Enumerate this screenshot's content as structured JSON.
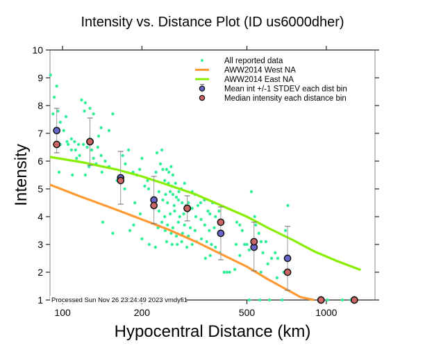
{
  "chart_data": {
    "type": "scatter",
    "title": "Intensity vs. Distance Plot (ID us6000dher)",
    "xlabel": "Hypocentral Distance (km)",
    "ylabel": "Intensity",
    "xscale": "log",
    "xlim": [
      89.6,
      1530
    ],
    "ylim": [
      1,
      10
    ],
    "xticks": [
      100,
      200,
      500,
      1000
    ],
    "xtick_labels": [
      "100",
      "200",
      "500",
      "1000"
    ],
    "yticks": [
      1,
      2,
      3,
      4,
      5,
      6,
      7,
      8,
      9,
      10
    ],
    "ytick_labels": [
      "1",
      "2",
      "3",
      "4",
      "5",
      "6",
      "7",
      "8",
      "9",
      "10"
    ],
    "legend_position": "top-right",
    "legend": [
      {
        "label": "All reported data",
        "kind": "dot",
        "color": "#33ee99"
      },
      {
        "label": "AWW2014 West NA",
        "kind": "line",
        "color": "#ff9933"
      },
      {
        "label": "AWW2014 East NA",
        "kind": "line",
        "color": "#88ee00"
      },
      {
        "label": "Mean int +/-1 STDEV each dist bin",
        "kind": "mean",
        "color": "#6666cc"
      },
      {
        "label": "Median intensity each distance bin",
        "kind": "median",
        "color": "#cc6666"
      }
    ],
    "annotation": "Processed Sun Nov 26 23:24:49 2023 vmdyfi1",
    "series": [
      {
        "name": "All reported data",
        "color": "#33ee99",
        "points": [
          [
            90,
            9.1
          ],
          [
            95,
            8.7
          ],
          [
            93,
            8.3
          ],
          [
            92,
            7.7
          ],
          [
            96,
            7.8
          ],
          [
            98,
            7.4
          ],
          [
            101,
            7.1
          ],
          [
            103,
            7.6
          ],
          [
            104,
            6.7
          ],
          [
            98,
            6.6
          ],
          [
            105,
            6.6
          ],
          [
            108,
            6.4
          ],
          [
            112,
            6.4
          ],
          [
            111,
            6.7
          ],
          [
            108,
            6.8
          ],
          [
            115,
            6.6
          ],
          [
            116,
            6.2
          ],
          [
            113,
            6.1
          ],
          [
            97,
            5.6
          ],
          [
            109,
            5.5
          ],
          [
            118,
            8.2
          ],
          [
            122,
            8.1
          ],
          [
            121,
            7.8
          ],
          [
            127,
            7.9
          ],
          [
            131,
            7.7
          ],
          [
            140,
            7.2
          ],
          [
            150,
            7.1
          ],
          [
            137,
            6.9
          ],
          [
            127,
            6.8
          ],
          [
            120,
            6.6
          ],
          [
            124,
            6.5
          ],
          [
            129,
            6.4
          ],
          [
            136,
            6.5
          ],
          [
            140,
            6.2
          ],
          [
            131,
            6.1
          ],
          [
            134,
            5.9
          ],
          [
            145,
            6.0
          ],
          [
            126,
            5.8
          ],
          [
            122,
            5.5
          ],
          [
            141,
            5.6
          ],
          [
            150,
            5.8
          ],
          [
            155,
            7.7
          ],
          [
            142,
            3.8
          ],
          [
            155,
            3.4
          ],
          [
            161,
            5.3
          ],
          [
            169,
            6.2
          ],
          [
            173,
            5.9
          ],
          [
            178,
            6.4
          ],
          [
            185,
            5.6
          ],
          [
            191,
            5.5
          ],
          [
            196,
            5.7
          ],
          [
            200,
            6.1
          ],
          [
            205,
            5.1
          ],
          [
            210,
            5.3
          ],
          [
            172,
            5.0
          ],
          [
            188,
            4.5
          ],
          [
            180,
            3.5
          ],
          [
            197,
            4.1
          ],
          [
            212,
            5.0
          ],
          [
            186,
            3.7
          ],
          [
            200,
            3.2
          ],
          [
            213,
            3.0
          ],
          [
            225,
            2.9
          ],
          [
            235,
            5.9
          ],
          [
            228,
            6.3
          ],
          [
            238,
            6.4
          ],
          [
            226,
            5.6
          ],
          [
            240,
            5.7
          ],
          [
            248,
            5.7
          ],
          [
            253,
            5.6
          ],
          [
            258,
            5.8
          ],
          [
            262,
            5.5
          ],
          [
            244,
            5.3
          ],
          [
            252,
            5.2
          ],
          [
            260,
            5.1
          ],
          [
            268,
            5.2
          ],
          [
            232,
            4.9
          ],
          [
            246,
            4.8
          ],
          [
            256,
            4.9
          ],
          [
            262,
            4.8
          ],
          [
            270,
            4.7
          ],
          [
            276,
            4.9
          ],
          [
            282,
            5.0
          ],
          [
            290,
            5.2
          ],
          [
            240,
            4.6
          ],
          [
            250,
            4.5
          ],
          [
            265,
            4.4
          ],
          [
            275,
            4.6
          ],
          [
            284,
            4.5
          ],
          [
            294,
            4.4
          ],
          [
            300,
            4.5
          ],
          [
            232,
            4.2
          ],
          [
            244,
            4.0
          ],
          [
            256,
            4.1
          ],
          [
            266,
            4.2
          ],
          [
            278,
            4.0
          ],
          [
            288,
            4.1
          ],
          [
            298,
            4.2
          ],
          [
            310,
            4.3
          ],
          [
            238,
            3.8
          ],
          [
            250,
            3.7
          ],
          [
            262,
            3.6
          ],
          [
            275,
            3.8
          ],
          [
            290,
            3.7
          ],
          [
            305,
            3.6
          ],
          [
            245,
            3.5
          ],
          [
            258,
            3.4
          ],
          [
            270,
            3.3
          ],
          [
            285,
            3.4
          ],
          [
            300,
            3.3
          ],
          [
            318,
            3.5
          ],
          [
            230,
            3.6
          ],
          [
            248,
            3.1
          ],
          [
            260,
            3.0
          ],
          [
            272,
            3.0
          ],
          [
            283,
            3.1
          ],
          [
            296,
            2.9
          ],
          [
            310,
            3.0
          ],
          [
            322,
            3.1
          ],
          [
            310,
            4.9
          ],
          [
            318,
            4.8
          ],
          [
            326,
            4.4
          ],
          [
            334,
            4.5
          ],
          [
            345,
            4.6
          ],
          [
            356,
            4.2
          ],
          [
            362,
            4.1
          ],
          [
            371,
            4.5
          ],
          [
            380,
            4.0
          ],
          [
            392,
            4.2
          ],
          [
            320,
            4.0
          ],
          [
            335,
            3.9
          ],
          [
            346,
            3.7
          ],
          [
            360,
            3.5
          ],
          [
            376,
            3.6
          ],
          [
            390,
            3.4
          ],
          [
            336,
            3.2
          ],
          [
            352,
            3.1
          ],
          [
            367,
            3.0
          ],
          [
            380,
            2.9
          ],
          [
            395,
            2.7
          ],
          [
            348,
            2.5
          ],
          [
            363,
            2.6
          ],
          [
            410,
            2.0
          ],
          [
            420,
            2.0
          ],
          [
            430,
            2.0
          ],
          [
            450,
            2.1
          ],
          [
            455,
            3.0
          ],
          [
            458,
            3.8
          ],
          [
            470,
            3.7
          ],
          [
            480,
            3.5
          ],
          [
            490,
            3.0
          ],
          [
            500,
            3.0
          ],
          [
            510,
            2.8
          ],
          [
            470,
            2.6
          ],
          [
            520,
            4.9
          ],
          [
            535,
            4.0
          ],
          [
            540,
            3.7
          ],
          [
            555,
            3.4
          ],
          [
            566,
            3.1
          ],
          [
            590,
            3.1
          ],
          [
            575,
            2.7
          ],
          [
            600,
            2.3
          ],
          [
            620,
            2.5
          ],
          [
            640,
            2.7
          ],
          [
            655,
            2.5
          ],
          [
            690,
            2.0
          ],
          [
            565,
            2.0
          ],
          [
            650,
            1.8
          ],
          [
            700,
            3.5
          ],
          [
            715,
            4.4
          ],
          [
            510,
            1.0
          ],
          [
            560,
            1.0
          ],
          [
            610,
            1.0
          ],
          [
            680,
            1.0
          ],
          [
            940,
            1.0
          ],
          [
            1010,
            1.0
          ],
          [
            1150,
            1.0
          ],
          [
            1240,
            1.0
          ]
        ]
      },
      {
        "name": "AWW2014 West NA",
        "color": "#ff9933",
        "points": [
          [
            89.6,
            5.15
          ],
          [
            115,
            4.75
          ],
          [
            160,
            4.25
          ],
          [
            200,
            3.9
          ],
          [
            250,
            3.55
          ],
          [
            320,
            3.1
          ],
          [
            400,
            2.65
          ],
          [
            500,
            2.2
          ],
          [
            600,
            1.75
          ],
          [
            700,
            1.4
          ],
          [
            800,
            1.1
          ],
          [
            900,
            1.0
          ]
        ]
      },
      {
        "name": "AWW2014 East NA",
        "color": "#88ee00",
        "points": [
          [
            89.6,
            6.15
          ],
          [
            120,
            5.95
          ],
          [
            160,
            5.7
          ],
          [
            200,
            5.45
          ],
          [
            250,
            5.15
          ],
          [
            320,
            4.8
          ],
          [
            400,
            4.4
          ],
          [
            500,
            4.0
          ],
          [
            600,
            3.6
          ],
          [
            750,
            3.15
          ],
          [
            900,
            2.75
          ],
          [
            1100,
            2.4
          ],
          [
            1350,
            2.08
          ]
        ]
      }
    ],
    "bins": [
      {
        "distance": 95,
        "mean": 7.1,
        "median": 6.6,
        "std_low": 6.3,
        "std_high": 7.9
      },
      {
        "distance": 127,
        "mean": 6.7,
        "median": 6.7,
        "std_low": 5.85,
        "std_high": 7.55
      },
      {
        "distance": 166,
        "mean": 5.4,
        "median": 5.3,
        "std_low": 4.45,
        "std_high": 6.35
      },
      {
        "distance": 222,
        "mean": 4.6,
        "median": 4.4,
        "std_low": 3.75,
        "std_high": 5.45
      },
      {
        "distance": 297,
        "mean": 4.3,
        "median": 4.3,
        "std_low": 3.85,
        "std_high": 4.75
      },
      {
        "distance": 398,
        "mean": 3.4,
        "median": 3.8,
        "std_low": 2.45,
        "std_high": 4.35
      },
      {
        "distance": 532,
        "mean": 2.9,
        "median": 3.1,
        "std_low": 2.05,
        "std_high": 3.8
      },
      {
        "distance": 713,
        "mean": 2.5,
        "median": 2.0,
        "std_low": 1.35,
        "std_high": 3.65
      },
      {
        "distance": 955,
        "mean": 1.0,
        "median": 1.0,
        "std_low": 1.0,
        "std_high": 1.0
      },
      {
        "distance": 1278,
        "mean": 1.0,
        "median": 1.0,
        "std_low": 1.0,
        "std_high": 1.0
      }
    ]
  }
}
